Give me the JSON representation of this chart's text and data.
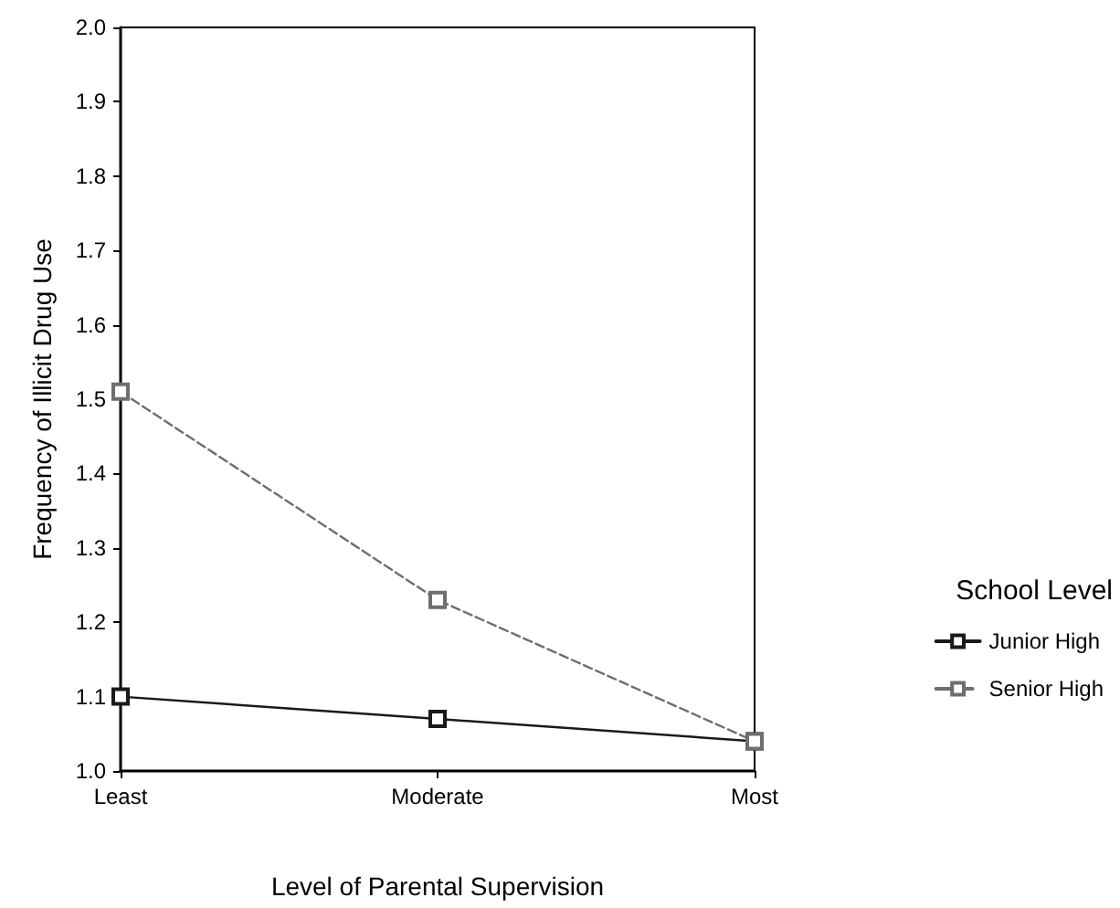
{
  "chart_data": {
    "type": "line",
    "xlabel": "Level of Parental Supervision",
    "ylabel": "Frequency of Illicit Drug Use",
    "legend_title": "School Level",
    "categories": [
      "Least",
      "Moderate",
      "Most"
    ],
    "series": [
      {
        "name": "Junior High",
        "color": "#1a1a1a",
        "line_style": "solid",
        "values": [
          1.1,
          1.07,
          1.04
        ]
      },
      {
        "name": "Senior High",
        "color": "#6e6e6e",
        "line_style": "dashed",
        "values": [
          1.51,
          1.23,
          1.04
        ]
      }
    ],
    "ylim": [
      1.0,
      2.0
    ],
    "yticks": [
      {
        "value": 1,
        "label": "1.0"
      },
      1.1,
      1.2,
      1.3,
      1.4,
      1.5,
      1.6,
      1.7,
      1.8,
      1.9,
      {
        "value": 2,
        "label": "2.0"
      }
    ],
    "grid": false,
    "legend": "right",
    "marker": "square"
  }
}
